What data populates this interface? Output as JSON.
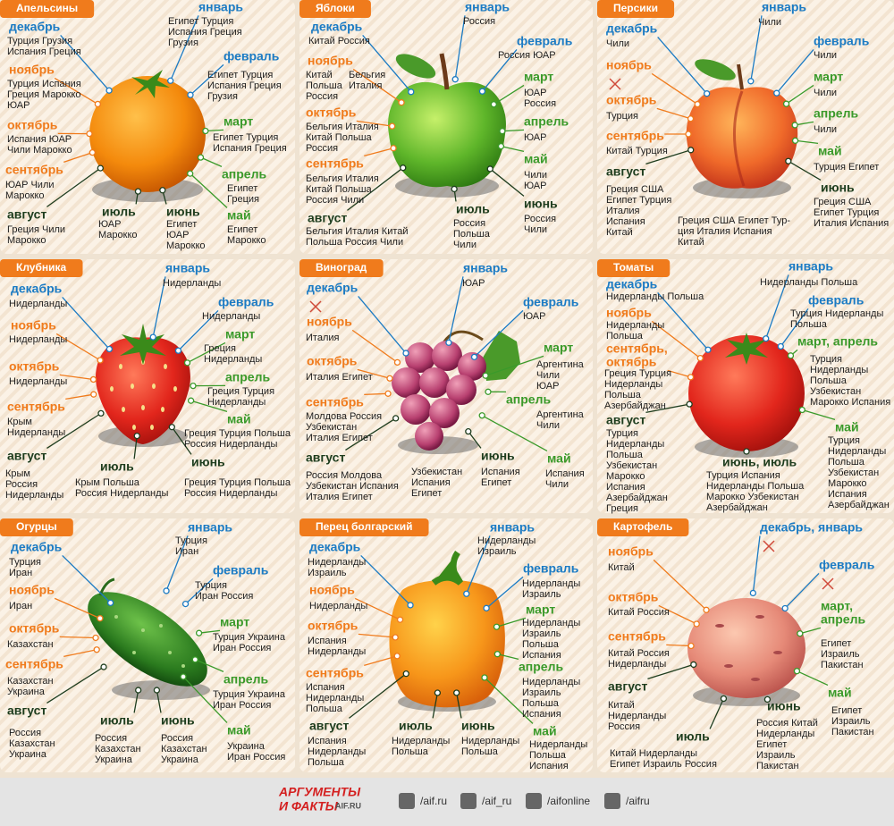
{
  "tab_color": "#f07b1c",
  "panels": [
    {
      "title": "Апельсины",
      "entries": [
        {
          "month": "январь",
          "color": "#1b7bc4",
          "lines": [
            "Египет Турция",
            "Испания Греция",
            "Грузия"
          ]
        },
        {
          "month": "декабрь",
          "color": "#1b7bc4",
          "lines": [
            "Турция Грузия",
            "Испания Греция"
          ]
        },
        {
          "month": "февраль",
          "color": "#1b7bc4",
          "lines": [
            "Египет Турция",
            "Испания Греция",
            "Грузия"
          ]
        },
        {
          "month": "ноябрь",
          "color": "#f07b1c",
          "lines": [
            "Турция Испания",
            "Греция Марокко",
            "ЮАР"
          ]
        },
        {
          "month": "март",
          "color": "#3a9a2a",
          "lines": [
            "Египет Турция",
            "Испания Греция"
          ]
        },
        {
          "month": "октябрь",
          "color": "#f07b1c",
          "lines": [
            "Испания ЮАР",
            "Чили Марокко"
          ]
        },
        {
          "month": "сентябрь",
          "color": "#f07b1c",
          "lines": [
            "ЮАР Чили",
            "Марокко"
          ]
        },
        {
          "month": "апрель",
          "color": "#3a9a2a",
          "lines": [
            "Египет",
            "Греция"
          ]
        },
        {
          "month": "август",
          "color": "#1e3d1e",
          "lines": [
            "Греция Чили",
            "Марокко"
          ]
        },
        {
          "month": "июль",
          "color": "#1e3d1e",
          "lines": [
            "ЮАР",
            "Марокко"
          ]
        },
        {
          "month": "июнь",
          "color": "#1e3d1e",
          "lines": [
            "Египет",
            "ЮАР",
            "Марокко"
          ]
        },
        {
          "month": "май",
          "color": "#3a9a2a",
          "lines": [
            "Египет",
            "Марокко"
          ]
        }
      ]
    },
    {
      "title": "Яблоки",
      "entries": [
        {
          "month": "январь",
          "color": "#1b7bc4",
          "lines": [
            "Россия"
          ]
        },
        {
          "month": "декабрь",
          "color": "#1b7bc4",
          "lines": [
            "Китай Россия"
          ]
        },
        {
          "month": "февраль",
          "color": "#1b7bc4",
          "lines": [
            "Россия ЮАР"
          ]
        },
        {
          "month": "ноябрь",
          "color": "#f07b1c",
          "lines": [
            "Китай",
            "Польша",
            "Россия"
          ],
          "lines_right": [
            "Бельгия",
            "Италия"
          ]
        },
        {
          "month": "март",
          "color": "#3a9a2a",
          "lines": [
            "ЮАР",
            "Россия"
          ]
        },
        {
          "month": "октябрь",
          "color": "#f07b1c",
          "lines": [
            "Бельгия Италия",
            "Китай Польша",
            "Россия"
          ]
        },
        {
          "month": "апрель",
          "color": "#3a9a2a",
          "lines": [
            "ЮАР"
          ]
        },
        {
          "month": "май",
          "color": "#3a9a2a",
          "lines": [
            "Чили",
            "ЮАР"
          ]
        },
        {
          "month": "сентябрь",
          "color": "#f07b1c",
          "lines": [
            "Бельгия Италия",
            "Китай Польша",
            "Россия Чили"
          ]
        },
        {
          "month": "июнь",
          "color": "#1e3d1e",
          "lines": [
            "Россия",
            "Чили"
          ]
        },
        {
          "month": "июль",
          "color": "#1e3d1e",
          "lines": [
            "Россия",
            "Польша",
            "Чили"
          ]
        },
        {
          "month": "август",
          "color": "#1e3d1e",
          "lines": [
            "Бельгия Италия Китай",
            "Польша Россия Чили"
          ]
        }
      ]
    },
    {
      "title": "Персики",
      "entries": [
        {
          "month": "январь",
          "color": "#1b7bc4",
          "lines": [
            "Чили"
          ]
        },
        {
          "month": "декабрь",
          "color": "#1b7bc4",
          "lines": [
            "Чили"
          ]
        },
        {
          "month": "февраль",
          "color": "#1b7bc4",
          "lines": [
            "Чили"
          ]
        },
        {
          "month": "ноябрь",
          "color": "#f07b1c"
        },
        {
          "month": "март",
          "color": "#3a9a2a",
          "lines": [
            "Чили"
          ]
        },
        {
          "month": "октябрь",
          "color": "#f07b1c",
          "lines": [
            "Турция"
          ]
        },
        {
          "month": "апрель",
          "color": "#3a9a2a",
          "lines": [
            "Чили"
          ]
        },
        {
          "month": "сентябрь",
          "color": "#f07b1c",
          "lines": [
            "Китай Турция"
          ]
        },
        {
          "month": "май",
          "color": "#3a9a2a",
          "lines": [
            "Турция Египет"
          ]
        },
        {
          "month": "август",
          "color": "#1e3d1e",
          "lines": [
            "Греция США",
            "Египет Турция",
            "Италия",
            "Испания",
            "Китай"
          ]
        },
        {
          "month": "июнь",
          "color": "#1e3d1e",
          "lines": [
            "Греция США",
            "Египет Турция",
            "Италия Испания"
          ]
        },
        {
          "color": "#1e3d1e",
          "lines": [
            "Греция США Египет Тур-",
            "ция Италия Испания",
            "Китай"
          ]
        }
      ]
    },
    {
      "title": "Клубника",
      "entries": [
        {
          "month": "январь",
          "color": "#1b7bc4",
          "lines": [
            "Нидерланды"
          ]
        },
        {
          "month": "декабрь",
          "color": "#1b7bc4",
          "lines": [
            "Нидерланды"
          ]
        },
        {
          "month": "февраль",
          "color": "#1b7bc4",
          "lines": [
            "Нидерланды"
          ]
        },
        {
          "month": "ноябрь",
          "color": "#f07b1c",
          "lines": [
            "Нидерланды"
          ]
        },
        {
          "month": "март",
          "color": "#3a9a2a",
          "lines": [
            "Греция",
            "Нидерланды"
          ]
        },
        {
          "month": "октябрь",
          "color": "#f07b1c",
          "lines": [
            "Нидерланды"
          ]
        },
        {
          "month": "апрель",
          "color": "#3a9a2a",
          "lines": [
            "Греция Турция",
            "Нидерланды"
          ]
        },
        {
          "month": "сентябрь",
          "color": "#f07b1c",
          "lines": [
            "Крым",
            "Нидерланды"
          ]
        },
        {
          "month": "май",
          "color": "#3a9a2a",
          "lines": [
            "Греция Турция Польша",
            "Россия Нидерланды"
          ]
        },
        {
          "month": "август",
          "color": "#1e3d1e",
          "lines": [
            "Крым",
            "Россия",
            "Нидерланды"
          ]
        },
        {
          "month": "июль",
          "color": "#1e3d1e",
          "lines": [
            "Крым Польша",
            "Россия Нидерланды"
          ]
        },
        {
          "month": "июнь",
          "color": "#1e3d1e",
          "lines": [
            "Греция Турция Польша",
            "Россия Нидерланды"
          ]
        }
      ]
    },
    {
      "title": "Виноград",
      "entries": [
        {
          "month": "январь",
          "color": "#1b7bc4",
          "lines": [
            "ЮАР"
          ]
        },
        {
          "month": "декабрь",
          "color": "#1b7bc4"
        },
        {
          "month": "февраль",
          "color": "#1b7bc4",
          "lines": [
            "ЮАР"
          ]
        },
        {
          "month": "ноябрь",
          "color": "#f07b1c",
          "lines": [
            "Италия"
          ]
        },
        {
          "month": "март",
          "color": "#3a9a2a",
          "lines": [
            "Аргентина",
            "Чили",
            "ЮАР"
          ]
        },
        {
          "month": "октябрь",
          "color": "#f07b1c",
          "lines": [
            "Италия Египет"
          ]
        },
        {
          "month": "апрель",
          "color": "#3a9a2a",
          "lines": [
            "Аргентина",
            "Чили"
          ]
        },
        {
          "month": "сентябрь",
          "color": "#f07b1c",
          "lines": [
            "Молдова Россия",
            "Узбекистан",
            "Италия Египет"
          ]
        },
        {
          "month": "май",
          "color": "#3a9a2a",
          "lines": [
            "Испания",
            "Чили"
          ]
        },
        {
          "month": "август",
          "color": "#1e3d1e",
          "lines": [
            "Россия Молдова",
            "Узбекистан Испания",
            "Италия Египет"
          ]
        },
        {
          "color": "#1e3d1e",
          "lines": [
            "Узбекистан",
            "Испания",
            "Египет"
          ]
        },
        {
          "month": "июнь",
          "color": "#1e3d1e",
          "lines": [
            "Испания",
            "Египет"
          ]
        }
      ]
    },
    {
      "title": "Томаты",
      "entries": [
        {
          "month": "январь",
          "color": "#1b7bc4",
          "lines": [
            "Нидерланды Польша"
          ]
        },
        {
          "month": "декабрь",
          "color": "#1b7bc4",
          "lines": [
            "Нидерланды Польша"
          ]
        },
        {
          "month": "февраль",
          "color": "#1b7bc4",
          "lines": [
            "Турция Нидерланды",
            "Польша"
          ]
        },
        {
          "month": "ноябрь",
          "color": "#f07b1c",
          "lines": [
            "Нидерланды",
            "Польша"
          ]
        },
        {
          "month": "март, апрель",
          "color": "#3a9a2a",
          "lines": [
            "Турция",
            "Нидерланды",
            "Польша",
            "Узбекистан",
            "Марокко Испания"
          ]
        },
        {
          "month": [
            "сентябрь,",
            "октябрь"
          ],
          "color": "#f07b1c",
          "lines": [
            "Греция Турция",
            "Нидерланды",
            "Польша",
            "Азербайджан"
          ]
        },
        {
          "month": "август",
          "color": "#1e3d1e",
          "lines": [
            "Турция",
            "Нидерланды",
            "Польша",
            "Узбекистан",
            "Марокко",
            "Испания",
            "Азербайджан",
            "Греция"
          ]
        },
        {
          "month": "май",
          "color": "#3a9a2a",
          "lines": [
            "Турция",
            "Нидерланды",
            "Польша",
            "Узбекистан",
            "Марокко",
            "Испания",
            "Азербайджан"
          ]
        },
        {
          "month": "июнь, июль",
          "color": "#1e3d1e",
          "lines": [
            "Турция Испания",
            "Нидерланды Польша",
            "Марокко Узбекистан",
            "Азербайджан"
          ]
        }
      ]
    },
    {
      "title": "Огурцы",
      "entries": [
        {
          "month": "январь",
          "color": "#1b7bc4",
          "lines": [
            "Турция",
            "Иран"
          ]
        },
        {
          "month": "декабрь",
          "color": "#1b7bc4",
          "lines": [
            "Турция",
            "Иран"
          ]
        },
        {
          "month": "февраль",
          "color": "#1b7bc4",
          "lines": [
            "Турция",
            "Иран Россия"
          ]
        },
        {
          "month": "ноябрь",
          "color": "#f07b1c",
          "lines": [
            "Иран"
          ]
        },
        {
          "month": "март",
          "color": "#3a9a2a",
          "lines": [
            "Турция Украина",
            "Иран Россия"
          ]
        },
        {
          "month": "октябрь",
          "color": "#f07b1c",
          "lines": [
            "Казахстан"
          ]
        },
        {
          "month": "сентябрь",
          "color": "#f07b1c",
          "lines": [
            "Казахстан",
            "Украина"
          ]
        },
        {
          "month": "апрель",
          "color": "#3a9a2a",
          "lines": [
            "Турция Украина",
            "Иран Россия"
          ]
        },
        {
          "month": "август",
          "color": "#1e3d1e",
          "lines": [
            "Россия",
            "Казахстан",
            "Украина"
          ]
        },
        {
          "month": "июль",
          "color": "#1e3d1e",
          "lines": [
            "Россия",
            "Казахстан",
            "Украина"
          ]
        },
        {
          "month": "июнь",
          "color": "#1e3d1e",
          "lines": [
            "Россия",
            "Казахстан",
            "Украина"
          ]
        },
        {
          "month": "май",
          "color": "#3a9a2a",
          "lines": [
            "Украина",
            "Иран Россия"
          ]
        }
      ]
    },
    {
      "title": "Перец болгарский",
      "entries": [
        {
          "month": "январь",
          "color": "#1b7bc4",
          "lines": [
            "Нидерланды",
            "Израиль"
          ]
        },
        {
          "month": "декабрь",
          "color": "#1b7bc4",
          "lines": [
            "Нидерланды",
            "Израиль"
          ]
        },
        {
          "month": "февраль",
          "color": "#1b7bc4",
          "lines": [
            "Нидерланды",
            "Израиль"
          ]
        },
        {
          "month": "ноябрь",
          "color": "#f07b1c",
          "lines": [
            "Нидерланды"
          ]
        },
        {
          "month": "март",
          "color": "#3a9a2a",
          "lines": [
            "Нидерланды",
            "Израиль",
            "Польша",
            "Испания"
          ]
        },
        {
          "month": "октябрь",
          "color": "#f07b1c",
          "lines": [
            "Испания",
            "Нидерланды"
          ]
        },
        {
          "month": "апрель",
          "color": "#3a9a2a",
          "lines": [
            "Нидерланды",
            "Израиль",
            "Польша",
            "Испания"
          ]
        },
        {
          "month": "сентябрь",
          "color": "#f07b1c",
          "lines": [
            "Испания",
            "Нидерланды",
            "Польша"
          ]
        },
        {
          "month": "май",
          "color": "#3a9a2a",
          "lines": [
            "Нидерланды",
            "Польша",
            "Испания"
          ]
        },
        {
          "month": "август",
          "color": "#1e3d1e",
          "lines": [
            "Испания",
            "Нидерланды",
            "Польша"
          ]
        },
        {
          "month": "июль",
          "color": "#1e3d1e",
          "lines": [
            "Нидерланды",
            "Польша"
          ]
        },
        {
          "month": "июнь",
          "color": "#1e3d1e",
          "lines": [
            "Нидерланды",
            "Польша"
          ]
        }
      ]
    },
    {
      "title": "Картофель",
      "entries": [
        {
          "month": "декабрь, январь",
          "color": "#1b7bc4"
        },
        {
          "month": "ноябрь",
          "color": "#f07b1c",
          "lines": [
            "Китай"
          ]
        },
        {
          "month": "февраль",
          "color": "#1b7bc4"
        },
        {
          "month": "октябрь",
          "color": "#f07b1c",
          "lines": [
            "Китай Россия"
          ]
        },
        {
          "month": [
            "март,",
            "апрель"
          ],
          "color": "#3a9a2a",
          "lines": [
            "Египет",
            "Израиль",
            "Пакистан"
          ]
        },
        {
          "month": "сентябрь",
          "color": "#f07b1c",
          "lines": [
            "Китай Россия",
            "Нидерланды"
          ]
        },
        {
          "month": "август",
          "color": "#1e3d1e",
          "lines": [
            "Китай",
            "Нидерланды",
            "Россия"
          ]
        },
        {
          "month": "май",
          "color": "#3a9a2a",
          "lines": [
            "Египет",
            "Израиль",
            "Пакистан"
          ]
        },
        {
          "month": "июнь",
          "color": "#1e3d1e",
          "lines": [
            "Россия Китай",
            "Нидерланды",
            "Египет",
            "Израиль",
            "Пакистан"
          ]
        },
        {
          "month": "июль",
          "color": "#1e3d1e",
          "lines": [
            "Китай Нидерланды",
            "Египет Израиль Россия"
          ]
        }
      ]
    }
  ],
  "footer": {
    "logo": [
      "АРГУМЕНТЫ",
      "И ФАКТЫ",
      "AIF.RU"
    ],
    "links": [
      "/aif.ru",
      "/aif_ru",
      "/aifonline",
      "/aifru"
    ]
  }
}
